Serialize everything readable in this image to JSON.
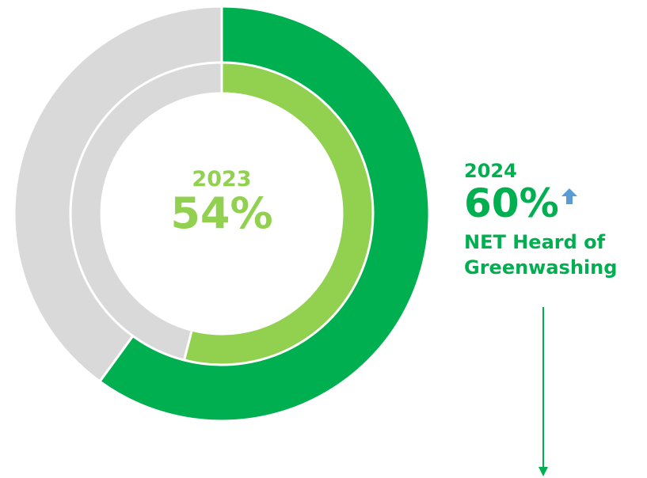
{
  "chart_data": {
    "type": "donut",
    "rings": [
      {
        "name": "2024",
        "value": 60,
        "color": "#00B050",
        "remainder_color": "#D9D9D9",
        "position": "outer"
      },
      {
        "name": "2023",
        "value": 54,
        "color": "#92D050",
        "remainder_color": "#D9D9D9",
        "position": "inner"
      }
    ],
    "center_label": {
      "year": "2023",
      "value": "54%"
    },
    "side_label": {
      "year": "2024",
      "value": "60%",
      "caption_line1": "NET Heard of",
      "caption_line2": "Greenwashing"
    },
    "trend": "up",
    "colors": {
      "outer": "#00B050",
      "inner": "#92D050",
      "remainder": "#D9D9D9",
      "arrow": "#5B9BD5"
    }
  }
}
